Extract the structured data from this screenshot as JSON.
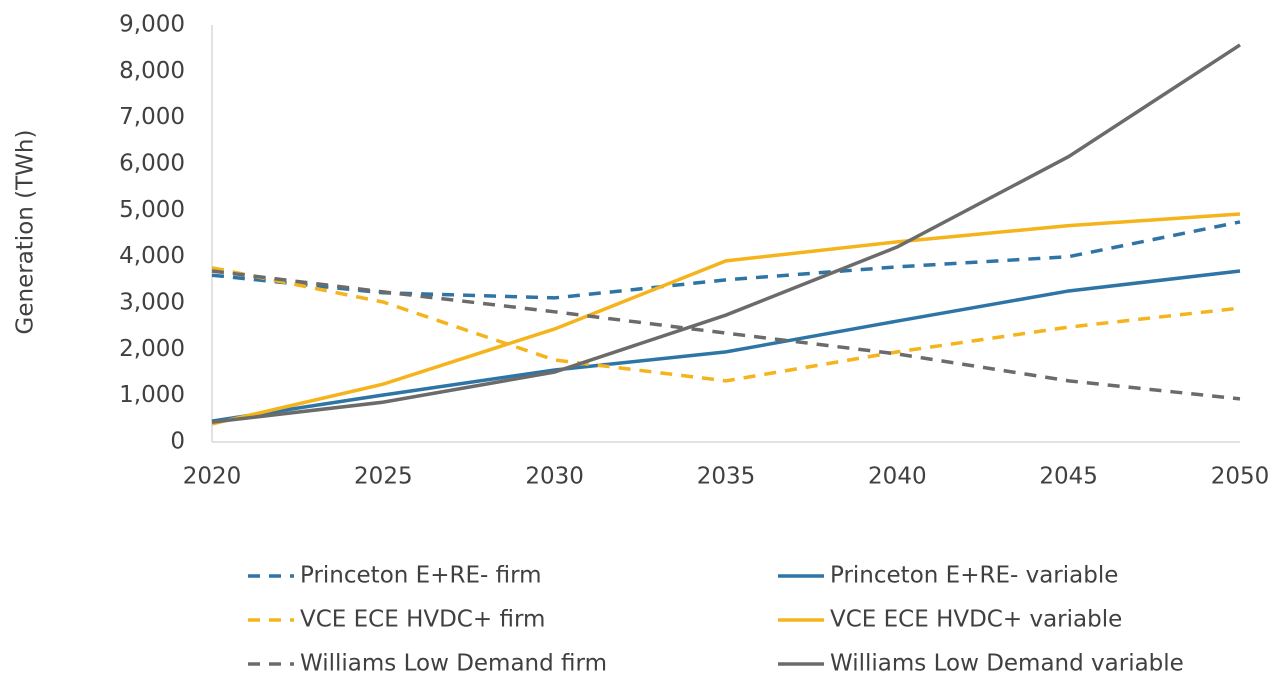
{
  "chart_data": {
    "type": "line",
    "y_label": "Generation (TWh)",
    "xlim": [
      2020,
      2050
    ],
    "xticks": [
      2020,
      2025,
      2030,
      2035,
      2040,
      2045,
      2050
    ],
    "x": [
      2020,
      2025,
      2030,
      2035,
      2040,
      2045,
      2050
    ],
    "ylim": [
      0,
      9000
    ],
    "yticks": [
      0,
      {
        "value": 1000,
        "label": "1,000"
      },
      {
        "value": 2000,
        "label": "2,000"
      },
      {
        "value": 3000,
        "label": "3,000"
      },
      {
        "value": 4000,
        "label": "4,000"
      },
      {
        "value": 5000,
        "label": "5,000"
      },
      {
        "value": 6000,
        "label": "6,000"
      },
      {
        "value": 7000,
        "label": "7,000"
      },
      {
        "value": 8000,
        "label": "8,000"
      },
      {
        "value": 9000,
        "label": "9,000"
      }
    ],
    "grid": false,
    "legend": "bottom",
    "series": [
      {
        "name": "Princeton E+RE- firm",
        "color": "#2e75a6",
        "style": "dashed",
        "values": [
          3600,
          3220,
          3110,
          3500,
          3780,
          4000,
          4750
        ]
      },
      {
        "name": "Princeton E+RE- variable",
        "color": "#2e75a6",
        "style": "solid",
        "values": [
          450,
          1015,
          1555,
          1945,
          2610,
          3260,
          3690
        ]
      },
      {
        "name": "VCE ECE HVDC+ firm",
        "color": "#f5b31c",
        "style": "dashed",
        "values": [
          3760,
          3020,
          1770,
          1320,
          1945,
          2480,
          2890
        ]
      },
      {
        "name": "VCE ECE HVDC+ variable",
        "color": "#f5b31c",
        "style": "solid",
        "values": [
          390,
          1250,
          2440,
          3910,
          4320,
          4670,
          4920
        ]
      },
      {
        "name": "Williams Low Demand firm",
        "color": "#6b6b6b",
        "style": "dashed",
        "values": [
          3690,
          3240,
          2810,
          2350,
          1900,
          1320,
          930
        ]
      },
      {
        "name": "Williams Low Demand variable",
        "color": "#6b6b6b",
        "style": "solid",
        "values": [
          430,
          860,
          1510,
          2740,
          4210,
          6160,
          8570
        ]
      }
    ]
  }
}
